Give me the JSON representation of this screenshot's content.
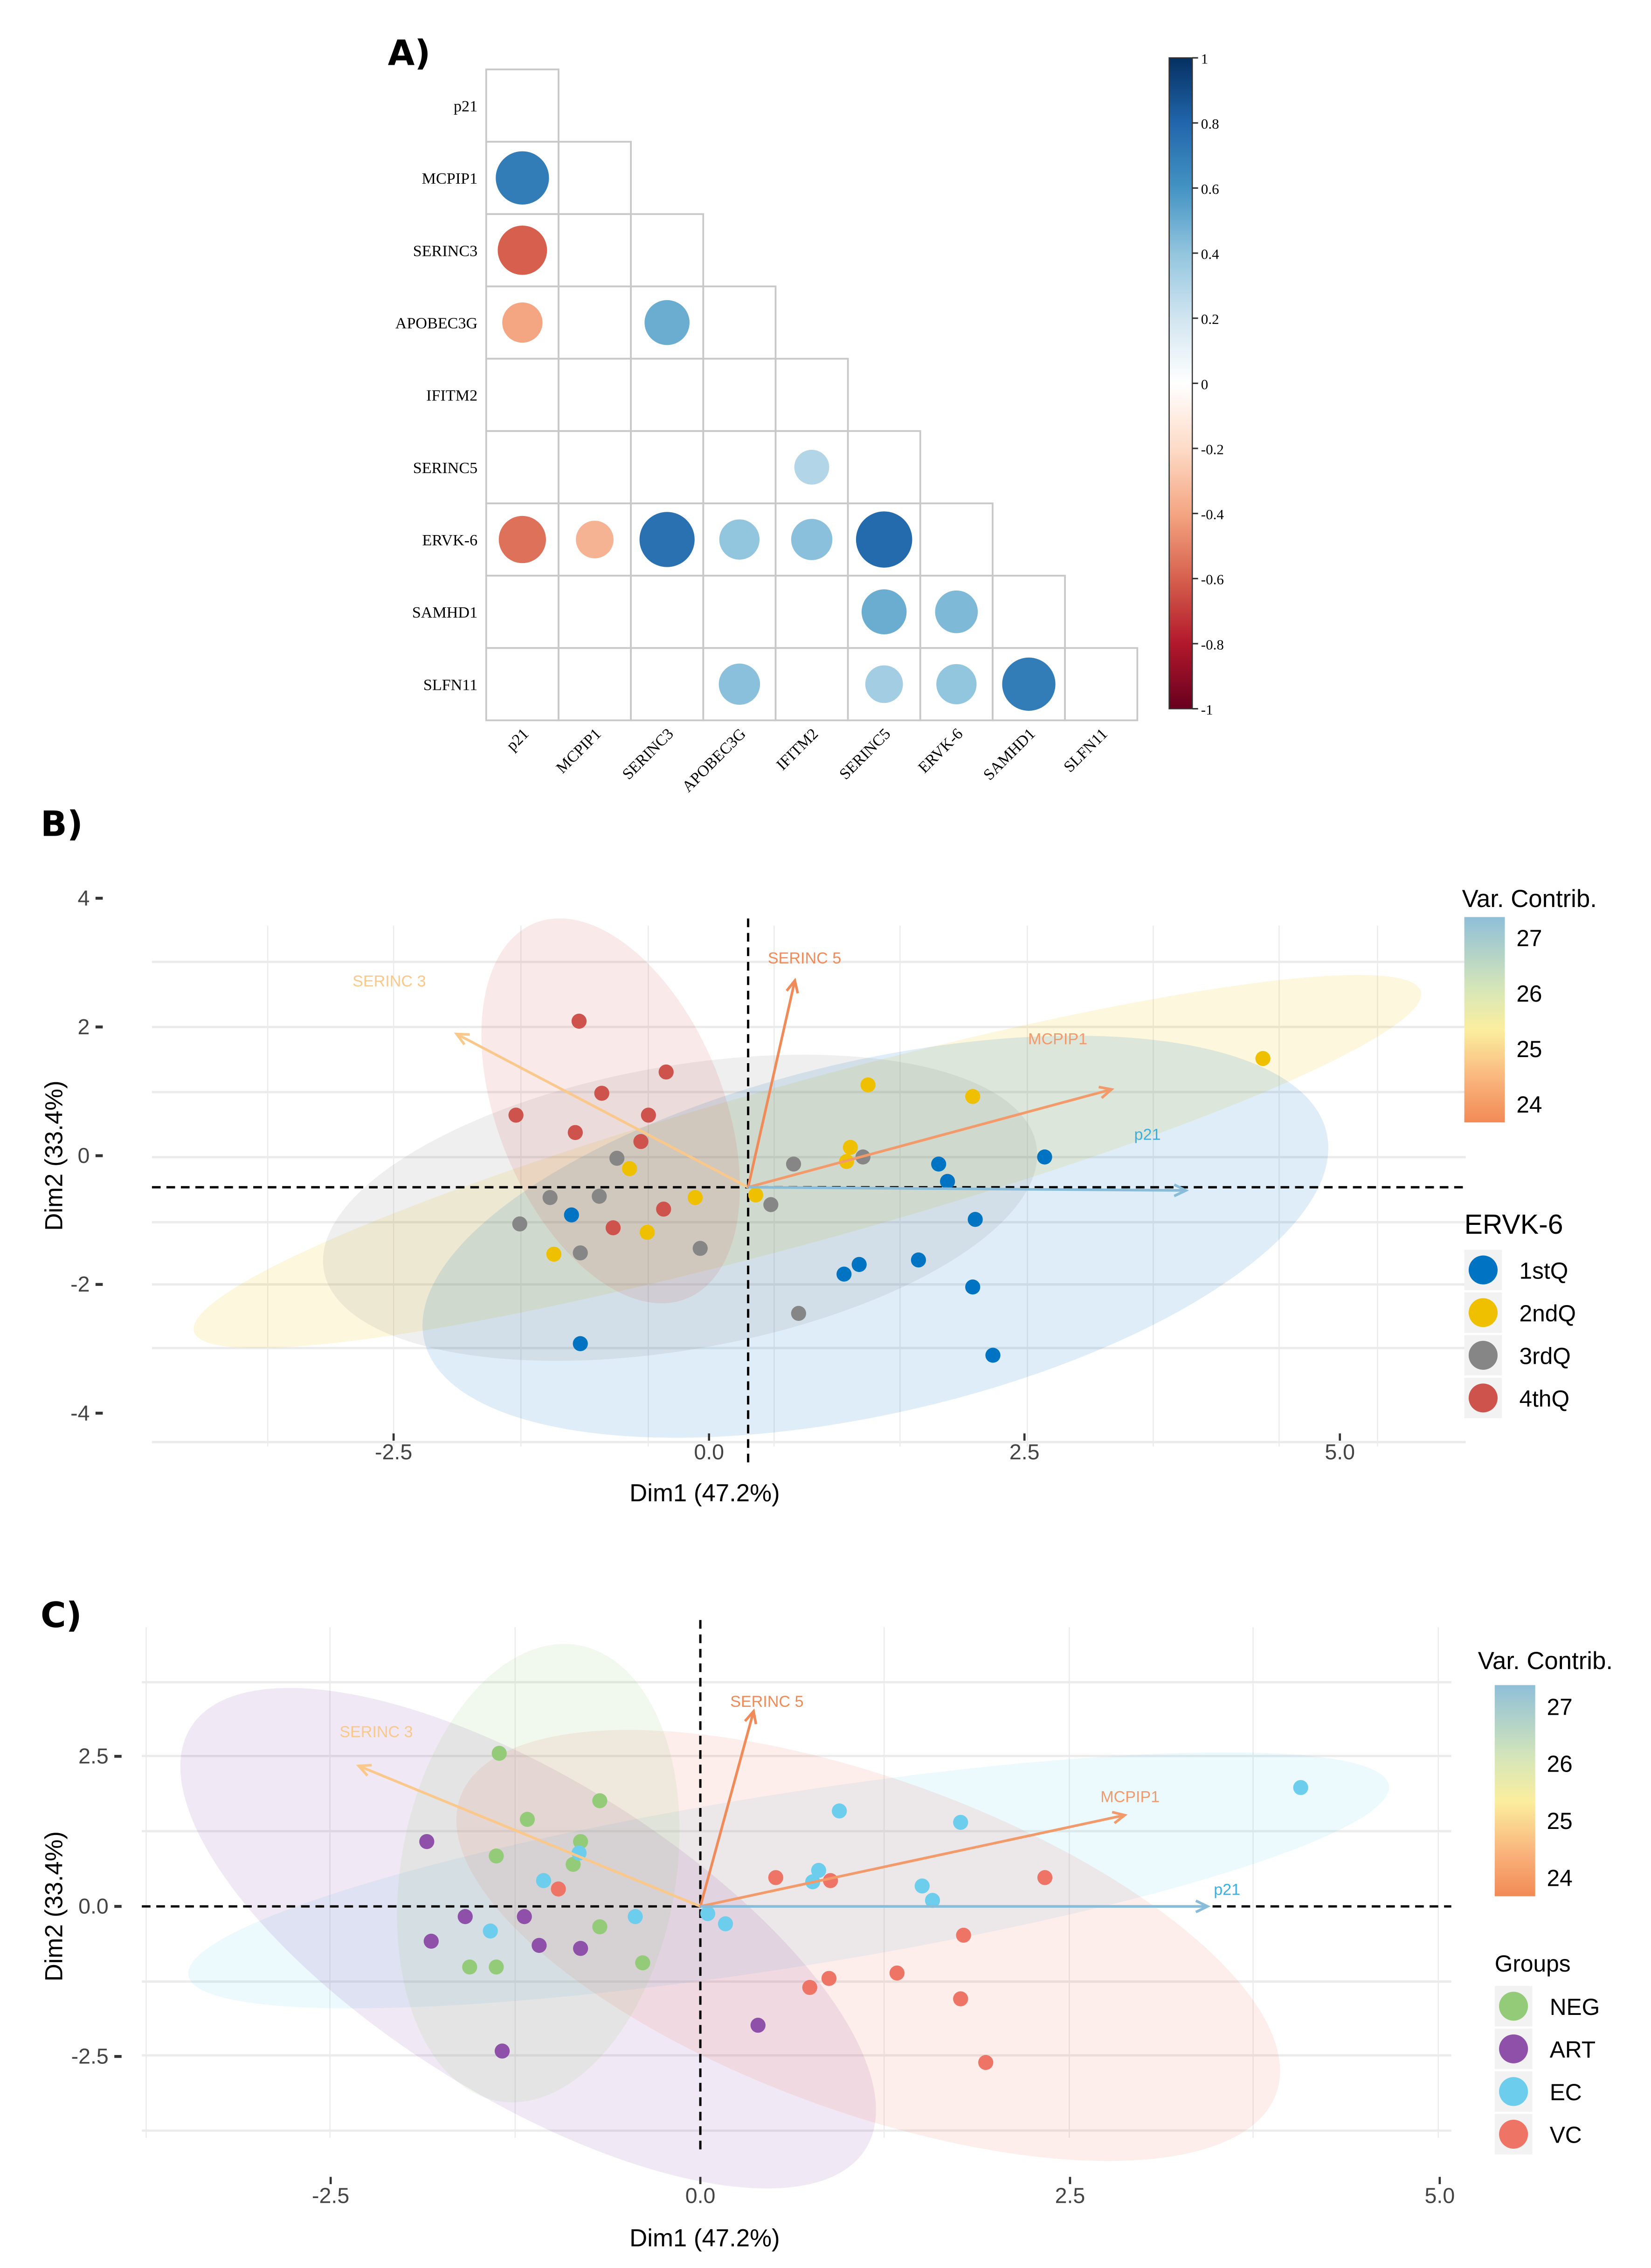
{
  "panels": {
    "a": "A)",
    "b": "B)",
    "c": "C)"
  },
  "colors": {
    "1stQ": "#0073C2",
    "2ndQ": "#EFC000",
    "3rdQ": "#868686",
    "4thQ": "#CD534C",
    "NEG": "#93CB78",
    "ART": "#8E50A8",
    "EC": "#6DCDEC",
    "VC": "#EE7466"
  },
  "chart_data": [
    {
      "type": "heatmap",
      "style": "lower-triangle correlogram with circles",
      "variables": [
        "p21",
        "MCPIP1",
        "SERINC3",
        "APOBEC3G",
        "IFITM2",
        "SERINC5",
        "ERVK-6",
        "SAMHD1",
        "SLFN11"
      ],
      "correlations": [
        [
          "MCPIP1",
          "p21",
          0.7
        ],
        [
          "SERINC3",
          "p21",
          -0.6
        ],
        [
          "APOBEC3G",
          "p21",
          -0.4
        ],
        [
          "APOBEC3G",
          "SERINC3",
          0.5
        ],
        [
          "SERINC5",
          "IFITM2",
          0.3
        ],
        [
          "ERVK-6",
          "p21",
          -0.55
        ],
        [
          "ERVK-6",
          "MCPIP1",
          -0.35
        ],
        [
          "ERVK-6",
          "SERINC3",
          0.75
        ],
        [
          "ERVK-6",
          "APOBEC3G",
          0.4
        ],
        [
          "ERVK-6",
          "IFITM2",
          0.42
        ],
        [
          "ERVK-6",
          "SERINC5",
          0.78
        ],
        [
          "SAMHD1",
          "SERINC5",
          0.5
        ],
        [
          "SAMHD1",
          "ERVK-6",
          0.45
        ],
        [
          "SLFN11",
          "APOBEC3G",
          0.42
        ],
        [
          "SLFN11",
          "SERINC5",
          0.35
        ],
        [
          "SLFN11",
          "ERVK-6",
          0.4
        ],
        [
          "SLFN11",
          "SAMHD1",
          0.7
        ]
      ],
      "colorbar": {
        "range": [
          -1,
          1
        ],
        "ticks": [
          "1",
          "0.8",
          "0.6",
          "0.4",
          "0.2",
          "0",
          "-0.2",
          "-0.4",
          "-0.6",
          "-0.8",
          "-1"
        ],
        "palette": "RdBu"
      }
    },
    {
      "type": "scatter",
      "subtype": "PCA biplot",
      "xlabel": "Dim1 (47.2%)",
      "ylabel": "Dim2 (33.4%)",
      "xticks": [
        "-2.5",
        "0.0",
        "2.5",
        "5.0"
      ],
      "yticks": [
        "4",
        "2",
        "0",
        "-2",
        "-4"
      ],
      "legend_title": "ERVK-6",
      "gradient_title": "Var. Contrib.",
      "gradient_ticks": [
        "27",
        "26",
        "25",
        "24"
      ],
      "series": [
        {
          "name": "1stQ",
          "points": [
            [
              2.66,
              -0.02
            ],
            [
              1.82,
              -0.13
            ],
            [
              1.89,
              -0.4
            ],
            [
              -1.09,
              -0.92
            ],
            [
              2.11,
              -0.99
            ],
            [
              1.07,
              -1.84
            ],
            [
              1.19,
              -1.69
            ],
            [
              1.66,
              -1.62
            ],
            [
              2.09,
              -2.04
            ],
            [
              -1.02,
              -2.92
            ],
            [
              2.25,
              -3.1
            ]
          ]
        },
        {
          "name": "2ndQ",
          "points": [
            [
              4.39,
              1.51
            ],
            [
              1.26,
              1.1
            ],
            [
              2.09,
              0.92
            ],
            [
              1.12,
              0.13
            ],
            [
              1.09,
              -0.09
            ],
            [
              -0.63,
              -0.2
            ],
            [
              -0.11,
              -0.65
            ],
            [
              0.37,
              -0.61
            ],
            [
              -0.49,
              -1.19
            ],
            [
              -1.23,
              -1.53
            ]
          ]
        },
        {
          "name": "3rdQ",
          "points": [
            [
              -0.73,
              -0.04
            ],
            [
              -0.87,
              -0.63
            ],
            [
              -1.26,
              -0.65
            ],
            [
              0.67,
              -0.13
            ],
            [
              1.22,
              -0.02
            ],
            [
              0.49,
              -0.76
            ],
            [
              -1.5,
              -1.06
            ],
            [
              -1.02,
              -1.51
            ],
            [
              -0.07,
              -1.44
            ],
            [
              0.71,
              -2.45
            ]
          ]
        },
        {
          "name": "4thQ",
          "points": [
            [
              -1.03,
              2.09
            ],
            [
              -0.34,
              1.3
            ],
            [
              -0.85,
              0.97
            ],
            [
              -1.53,
              0.63
            ],
            [
              -0.48,
              0.63
            ],
            [
              -1.06,
              0.36
            ],
            [
              -0.54,
              0.22
            ],
            [
              -0.36,
              -0.83
            ],
            [
              -0.76,
              -1.12
            ]
          ]
        }
      ],
      "origin": [
        0.31,
        -0.49
      ],
      "arrows": [
        {
          "name": "SERINC 3",
          "end": [
            -2.0,
            1.89
          ],
          "color": "#F9C88A"
        },
        {
          "name": "SERINC 5",
          "end": [
            0.68,
            2.72
          ],
          "color": "#F08A58"
        },
        {
          "name": "MCPIP1",
          "end": [
            3.19,
            1.03
          ],
          "color": "#F29A6A"
        },
        {
          "name": "p21",
          "end": [
            3.78,
            -0.54
          ],
          "color": "#89BCD8",
          "label_color": "#3AAFE0"
        }
      ]
    },
    {
      "type": "scatter",
      "subtype": "PCA biplot",
      "xlabel": "Dim1 (47.2%)",
      "ylabel": "Dim2 (33.4%)",
      "xticks": [
        "-2.5",
        "0.0",
        "2.5",
        "5.0"
      ],
      "yticks": [
        "2.5",
        "0.0",
        "-2.5"
      ],
      "legend_title": "Groups",
      "gradient_title": "Var. Contrib.",
      "gradient_ticks": [
        "27",
        "26",
        "25",
        "24"
      ],
      "series": [
        {
          "name": "NEG",
          "points": [
            [
              -1.36,
              2.55
            ],
            [
              -0.68,
              1.76
            ],
            [
              -1.17,
              1.45
            ],
            [
              -0.81,
              1.08
            ],
            [
              -1.38,
              0.84
            ],
            [
              -0.86,
              0.7
            ],
            [
              -0.68,
              -0.34
            ],
            [
              -1.38,
              -1.01
            ],
            [
              -1.56,
              -1.01
            ],
            [
              -0.39,
              -0.94
            ]
          ]
        },
        {
          "name": "ART",
          "points": [
            [
              -1.85,
              1.08
            ],
            [
              -1.82,
              -0.58
            ],
            [
              -1.59,
              -0.17
            ],
            [
              -1.19,
              -0.17
            ],
            [
              -1.09,
              -0.65
            ],
            [
              -0.81,
              -0.7
            ],
            [
              0.39,
              -1.98
            ],
            [
              -1.34,
              -2.41
            ]
          ]
        },
        {
          "name": "EC",
          "points": [
            [
              4.06,
              1.98
            ],
            [
              0.94,
              1.59
            ],
            [
              1.76,
              1.4
            ],
            [
              0.8,
              0.6
            ],
            [
              0.76,
              0.41
            ],
            [
              1.5,
              0.34
            ],
            [
              1.57,
              0.1
            ],
            [
              -0.82,
              0.89
            ],
            [
              -1.06,
              0.43
            ],
            [
              -1.42,
              -0.41
            ],
            [
              -0.44,
              -0.17
            ],
            [
              0.05,
              -0.12
            ],
            [
              0.17,
              -0.29
            ]
          ]
        },
        {
          "name": "VC",
          "points": [
            [
              -0.96,
              0.29
            ],
            [
              0.51,
              0.48
            ],
            [
              0.88,
              0.43
            ],
            [
              2.33,
              0.48
            ],
            [
              1.78,
              -0.48
            ],
            [
              1.33,
              -1.11
            ],
            [
              0.87,
              -1.2
            ],
            [
              0.74,
              -1.35
            ],
            [
              1.76,
              -1.54
            ],
            [
              1.93,
              -2.6
            ]
          ]
        }
      ],
      "origin": [
        0,
        0
      ],
      "arrows": [
        {
          "name": "SERINC 3",
          "end": [
            -2.31,
            2.34
          ],
          "color": "#F9C88A"
        },
        {
          "name": "SERINC 5",
          "end": [
            0.36,
            3.25
          ],
          "color": "#F08A58"
        },
        {
          "name": "MCPIP1",
          "end": [
            2.87,
            1.52
          ],
          "color": "#F29A6A"
        },
        {
          "name": "p21",
          "end": [
            3.43,
            0.0
          ],
          "color": "#89BCD8",
          "label_color": "#3AAFE0"
        }
      ]
    }
  ]
}
